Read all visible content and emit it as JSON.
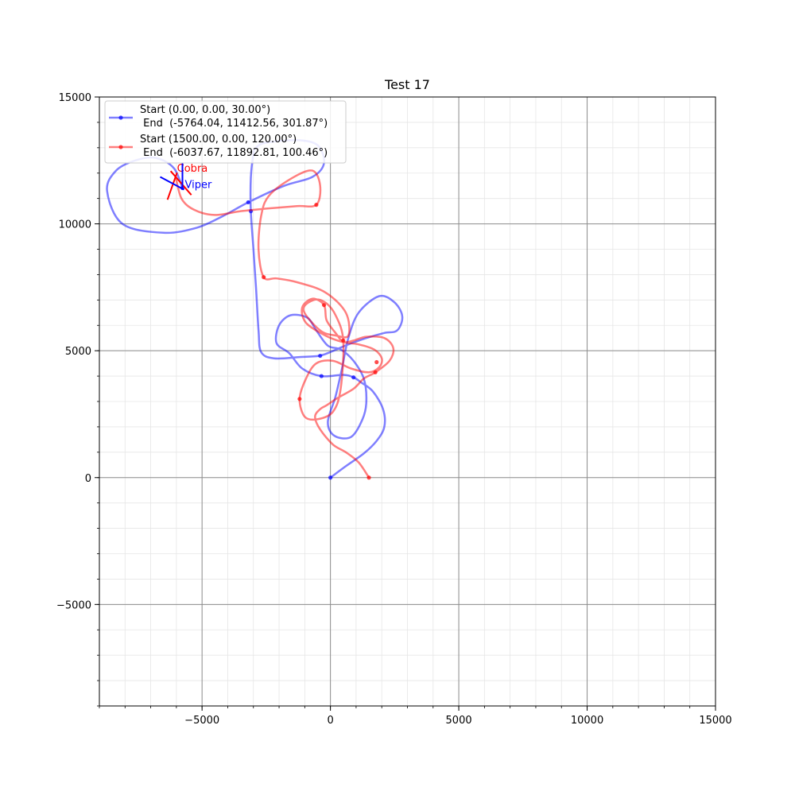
{
  "chart_data": {
    "type": "line",
    "title": "Test 17",
    "xlabel": "",
    "ylabel": "",
    "xlim": [
      -9000,
      15000
    ],
    "ylim": [
      -9000,
      15000
    ],
    "x_ticks": [
      -5000,
      0,
      5000,
      10000,
      15000
    ],
    "y_ticks": [
      -5000,
      0,
      5000,
      10000,
      15000
    ],
    "x_tick_labels": [
      "−5000",
      "0",
      "5000",
      "10000",
      "15000"
    ],
    "y_tick_labels": [
      "−5000",
      "0",
      "5000",
      "10000",
      "15000"
    ],
    "grid": true,
    "minor_grid": true,
    "legend_position": "top-left",
    "series": [
      {
        "name": "Start (0.00, 0.00, 30.00°)\n End  (-5764.04, 11412.56, 301.87°)",
        "label_line1": "Start (0.00, 0.00, 30.00°)",
        "label_line2": " End  (-5764.04, 11412.56, 301.87°)",
        "color": "#0000ff",
        "points": [
          [
            0,
            0
          ],
          [
            600,
            450
          ],
          [
            1300,
            950
          ],
          [
            1800,
            1450
          ],
          [
            2100,
            2000
          ],
          [
            2050,
            2700
          ],
          [
            1650,
            3400
          ],
          [
            1200,
            3750
          ],
          [
            900,
            3950
          ],
          [
            500,
            4050
          ],
          [
            -350,
            4000
          ],
          [
            -1100,
            4300
          ],
          [
            -1600,
            4900
          ],
          [
            -2100,
            5300
          ],
          [
            -2000,
            6000
          ],
          [
            -1550,
            6400
          ],
          [
            -900,
            6300
          ],
          [
            -550,
            5800
          ],
          [
            -100,
            5200
          ],
          [
            400,
            5050
          ],
          [
            900,
            4600
          ],
          [
            1300,
            3900
          ],
          [
            1400,
            3000
          ],
          [
            1250,
            2300
          ],
          [
            800,
            1600
          ],
          [
            150,
            1650
          ],
          [
            -100,
            2200
          ],
          [
            200,
            3200
          ],
          [
            450,
            4300
          ],
          [
            700,
            5500
          ],
          [
            1100,
            6500
          ],
          [
            1900,
            7150
          ],
          [
            2500,
            6900
          ],
          [
            2800,
            6350
          ],
          [
            2600,
            5800
          ],
          [
            2100,
            5700
          ],
          [
            1400,
            5500
          ],
          [
            700,
            5250
          ],
          [
            0,
            4950
          ],
          [
            -450,
            4800
          ],
          [
            -1200,
            4750
          ],
          [
            -2200,
            4700
          ],
          [
            -2700,
            4950
          ],
          [
            -2800,
            5800
          ],
          [
            -2900,
            7500
          ],
          [
            -3000,
            9000
          ],
          [
            -3100,
            10500
          ],
          [
            -3100,
            11800
          ],
          [
            -3000,
            12750
          ],
          [
            -2900,
            13000
          ],
          [
            -2500,
            13200
          ],
          [
            -1300,
            13300
          ],
          [
            -500,
            13100
          ],
          [
            -250,
            12400
          ],
          [
            -700,
            11850
          ],
          [
            -1800,
            11500
          ],
          [
            -3200,
            10850
          ],
          [
            -4200,
            10300
          ],
          [
            -5200,
            9850
          ],
          [
            -6500,
            9650
          ],
          [
            -8100,
            10000
          ],
          [
            -8700,
            11300
          ],
          [
            -8350,
            12100
          ],
          [
            -7600,
            12500
          ],
          [
            -6800,
            12600
          ],
          [
            -6100,
            12200
          ],
          [
            -5764,
            11412
          ]
        ],
        "markers": [
          [
            0,
            0
          ],
          [
            900,
            3950
          ],
          [
            -350,
            4000
          ],
          [
            -400,
            4800
          ],
          [
            -3100,
            10500
          ],
          [
            -3200,
            10850
          ],
          [
            -5764,
            11412
          ]
        ]
      },
      {
        "name": "Start (1500.00, 0.00, 120.00°)\n End  (-6037.67, 11892.81, 100.46°)",
        "label_line1": "Start (1500.00, 0.00, 120.00°)",
        "label_line2": " End  (-6037.67, 11892.81, 100.46°)",
        "color": "#ff0000",
        "points": [
          [
            1500,
            0
          ],
          [
            1100,
            600
          ],
          [
            600,
            1000
          ],
          [
            100,
            1300
          ],
          [
            -400,
            1900
          ],
          [
            -600,
            2400
          ],
          [
            -400,
            2700
          ],
          [
            -150,
            2850
          ],
          [
            300,
            3150
          ],
          [
            900,
            3500
          ],
          [
            1300,
            3900
          ],
          [
            1750,
            4150
          ],
          [
            2300,
            4600
          ],
          [
            2450,
            5100
          ],
          [
            2100,
            5500
          ],
          [
            1400,
            5550
          ],
          [
            900,
            5400
          ],
          [
            500,
            5350
          ],
          [
            200,
            5700
          ],
          [
            -150,
            6200
          ],
          [
            -250,
            6800
          ],
          [
            -700,
            7050
          ],
          [
            -1100,
            6700
          ],
          [
            -950,
            6100
          ],
          [
            -200,
            5600
          ],
          [
            450,
            5350
          ],
          [
            1100,
            5250
          ],
          [
            1700,
            5050
          ],
          [
            2000,
            4700
          ],
          [
            1900,
            4350
          ],
          [
            1500,
            4150
          ],
          [
            800,
            4300
          ],
          [
            100,
            4600
          ],
          [
            -550,
            4500
          ],
          [
            -950,
            3900
          ],
          [
            -1200,
            3100
          ],
          [
            -1000,
            2400
          ],
          [
            -500,
            2300
          ],
          [
            100,
            2600
          ],
          [
            400,
            3500
          ],
          [
            500,
            5400
          ],
          [
            200,
            6400
          ],
          [
            -200,
            6900
          ],
          [
            -650,
            7000
          ],
          [
            -1050,
            6600
          ],
          [
            -400,
            5800
          ],
          [
            200,
            5600
          ],
          [
            700,
            5600
          ],
          [
            600,
            6500
          ],
          [
            -200,
            7300
          ],
          [
            -1300,
            7700
          ],
          [
            -2100,
            7850
          ],
          [
            -2600,
            7900
          ],
          [
            -2800,
            9000
          ],
          [
            -2700,
            10300
          ],
          [
            -2400,
            11100
          ],
          [
            -1500,
            11800
          ],
          [
            -700,
            12100
          ],
          [
            -400,
            11500
          ],
          [
            -550,
            10750
          ],
          [
            -1300,
            10700
          ],
          [
            -2500,
            10600
          ],
          [
            -3500,
            10500
          ],
          [
            -4500,
            10350
          ],
          [
            -5300,
            10550
          ],
          [
            -5800,
            11000
          ],
          [
            -6037,
            11892
          ]
        ],
        "markers": [
          [
            1500,
            0
          ],
          [
            -1200,
            3100
          ],
          [
            1750,
            4150
          ],
          [
            1800,
            4550
          ],
          [
            500,
            5400
          ],
          [
            -250,
            6800
          ],
          [
            -2600,
            7900
          ],
          [
            -550,
            10750
          ]
        ]
      }
    ],
    "annotations": [
      {
        "text": "Cobra",
        "color": "#ff0000",
        "x": -6037.67,
        "y": 11892.81
      },
      {
        "text": "Viper",
        "color": "#0000ff",
        "x": -5764.04,
        "y": 11412.56
      }
    ]
  }
}
